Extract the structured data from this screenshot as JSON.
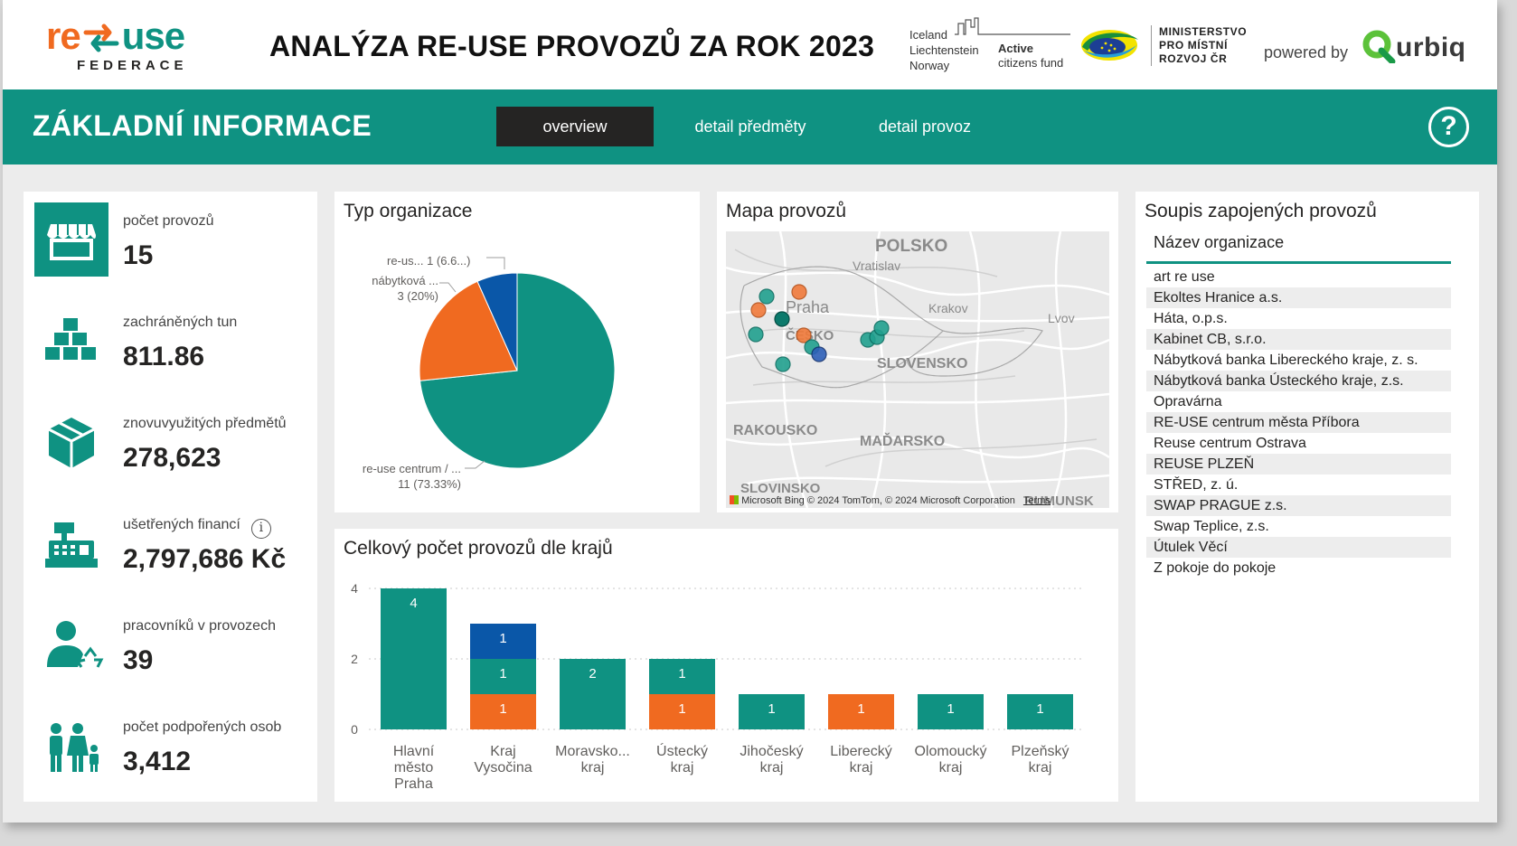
{
  "header": {
    "logo": {
      "re": "re",
      "use": "use",
      "sub": "FEDERACE"
    },
    "title": "ANALÝZA RE-USE PROVOZŮ ZA ROK 2023",
    "donor": {
      "countries": [
        "Iceland",
        "Liechtenstein",
        "Norway"
      ],
      "fund_line1": "Active",
      "fund_line2": "citizens fund"
    },
    "ministry": [
      "MINISTERSTVO",
      "PRO MÍSTNÍ",
      "ROZVOJ ČR"
    ],
    "powered_by": "powered by",
    "brand": "urbiq"
  },
  "nav": {
    "section_title": "ZÁKLADNÍ INFORMACE",
    "tabs": [
      {
        "label": "overview",
        "active": true
      },
      {
        "label": "detail předměty",
        "active": false
      },
      {
        "label": "detail provoz",
        "active": false
      }
    ],
    "help": "?"
  },
  "kpis": [
    {
      "icon": "store-icon",
      "label": "počet provozů",
      "value": "15"
    },
    {
      "icon": "boxes-icon",
      "label": "zachráněných tun",
      "value": "811.86"
    },
    {
      "icon": "package-icon",
      "label": "znovuvyužitých předmětů",
      "value": "278,623"
    },
    {
      "icon": "cash-register-icon",
      "label": "ušetřených financí",
      "value": "2,797,686 Kč",
      "info": "i"
    },
    {
      "icon": "worker-recycle-icon",
      "label": "pracovníků v provozech",
      "value": "39"
    },
    {
      "icon": "family-icon",
      "label": "počet podpořených osob",
      "value": "3,412"
    }
  ],
  "pie_card": {
    "title": "Typ organizace",
    "labels": [
      {
        "line1": "re-us... 1 (6.6...)",
        "line2": ""
      },
      {
        "line1": "nábytková ...",
        "line2": "3 (20%)"
      },
      {
        "line1": "re-use centrum / ...",
        "line2": "11 (73.33%)"
      }
    ]
  },
  "map_card": {
    "title": "Mapa provozů",
    "labels": {
      "polsko": "POLSKO",
      "vratislav": "Vratislav",
      "praha": "Praha",
      "cesko": "ČESKO",
      "krakov": "Krakov",
      "lvov": "Lvov",
      "slovensko": "SLOVENSKO",
      "rakousko": "RAKOUSKO",
      "madarsko": "MAĎARSKO",
      "slovinsko": "SLOVINSKO",
      "rumunsko": "RUMUNSK"
    },
    "attribution": "Microsoft Bing",
    "copyright": "© 2024 TomTom, © 2024 Microsoft Corporation",
    "terms": "Terms"
  },
  "list_card": {
    "title": "Soupis zapojených provozů",
    "header": "Název organizace",
    "rows": [
      "art re use",
      "Ekoltes Hranice a.s.",
      "Háta, o.p.s.",
      "Kabinet CB, s.r.o.",
      "Nábytková banka Libereckého kraje, z. s.",
      "Nábytková banka Ústeckého kraje, z.s.",
      "Opravárna",
      "RE-USE centrum města Příbora",
      "Reuse centrum Ostrava",
      "REUSE PLZEŇ",
      "STŘED, z. ú.",
      "SWAP PRAGUE z.s.",
      "Swap Teplice, z.s.",
      "Útulek Věcí",
      "Z pokoje do pokoje"
    ]
  },
  "colors": {
    "teal": "#0f9282",
    "orange": "#f06a20",
    "blue": "#0a57a8",
    "dark": "#252423"
  },
  "chart_data": [
    {
      "type": "pie",
      "title": "Typ organizace",
      "slices": [
        {
          "label": "re-use centrum / ...",
          "value": 11,
          "percent": 73.33,
          "color": "#0f9282"
        },
        {
          "label": "nábytková ...",
          "value": 3,
          "percent": 20,
          "color": "#f06a20"
        },
        {
          "label": "re-us...",
          "value": 1,
          "percent": 6.67,
          "color": "#0a57a8"
        }
      ]
    },
    {
      "type": "bar",
      "stacked": true,
      "title": "Celkový počet provozů dle krajů",
      "categories": [
        [
          "Hlavní",
          "město",
          "Praha"
        ],
        [
          "Kraj",
          "Vysočina"
        ],
        [
          "Moravsko...",
          "kraj"
        ],
        [
          "Ústecký",
          "kraj"
        ],
        [
          "Jihočeský",
          "kraj"
        ],
        [
          "Liberecký",
          "kraj"
        ],
        [
          "Olomoucký",
          "kraj"
        ],
        [
          "Plzeňský",
          "kraj"
        ]
      ],
      "series": [
        {
          "color": "#f06a20",
          "values": [
            0,
            1,
            0,
            1,
            0,
            1,
            0,
            0
          ]
        },
        {
          "color": "#0f9282",
          "values": [
            4,
            1,
            2,
            1,
            1,
            0,
            1,
            1
          ]
        },
        {
          "color": "#0a57a8",
          "values": [
            0,
            1,
            0,
            0,
            0,
            0,
            0,
            0
          ]
        }
      ],
      "yticks": [
        "0",
        "2",
        "4"
      ],
      "ylim": [
        0,
        4
      ],
      "grid": true
    }
  ]
}
